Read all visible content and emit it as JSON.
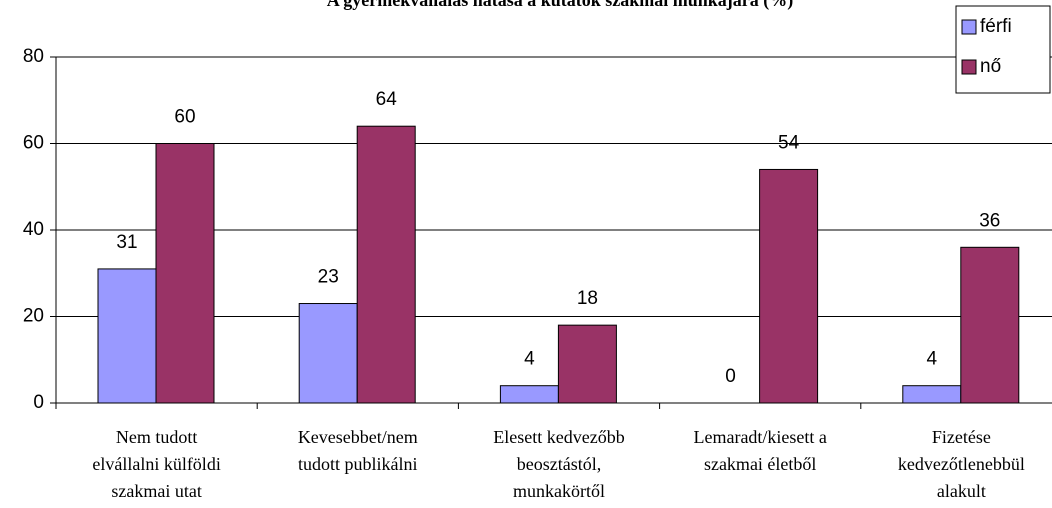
{
  "chart_data": {
    "type": "bar",
    "title": "A gyermekvállalás hatása a kutatók szakmai munkájára (%)",
    "categories": [
      [
        "Nem tudott",
        "elvállalni külföldi",
        "szakmai utat"
      ],
      [
        "Kevesebbet/nem",
        "tudott publikálni"
      ],
      [
        "Elesett kedvezőbb",
        "beosztástól,",
        "munkakörtől"
      ],
      [
        "Lemaradt/kiesett a",
        "szakmai életből"
      ],
      [
        "Fizetése",
        "kedvezőtlenebbül",
        "alakult"
      ]
    ],
    "series": [
      {
        "name": "férfi",
        "color": "#9999ff",
        "values": [
          31,
          23,
          4,
          0,
          4
        ]
      },
      {
        "name": "nő",
        "color": "#993366",
        "values": [
          60,
          64,
          18,
          54,
          36
        ]
      }
    ],
    "ylim": [
      0,
      80
    ],
    "yticks": [
      0,
      20,
      40,
      60,
      80
    ],
    "grid": true,
    "legend": "top-right"
  }
}
